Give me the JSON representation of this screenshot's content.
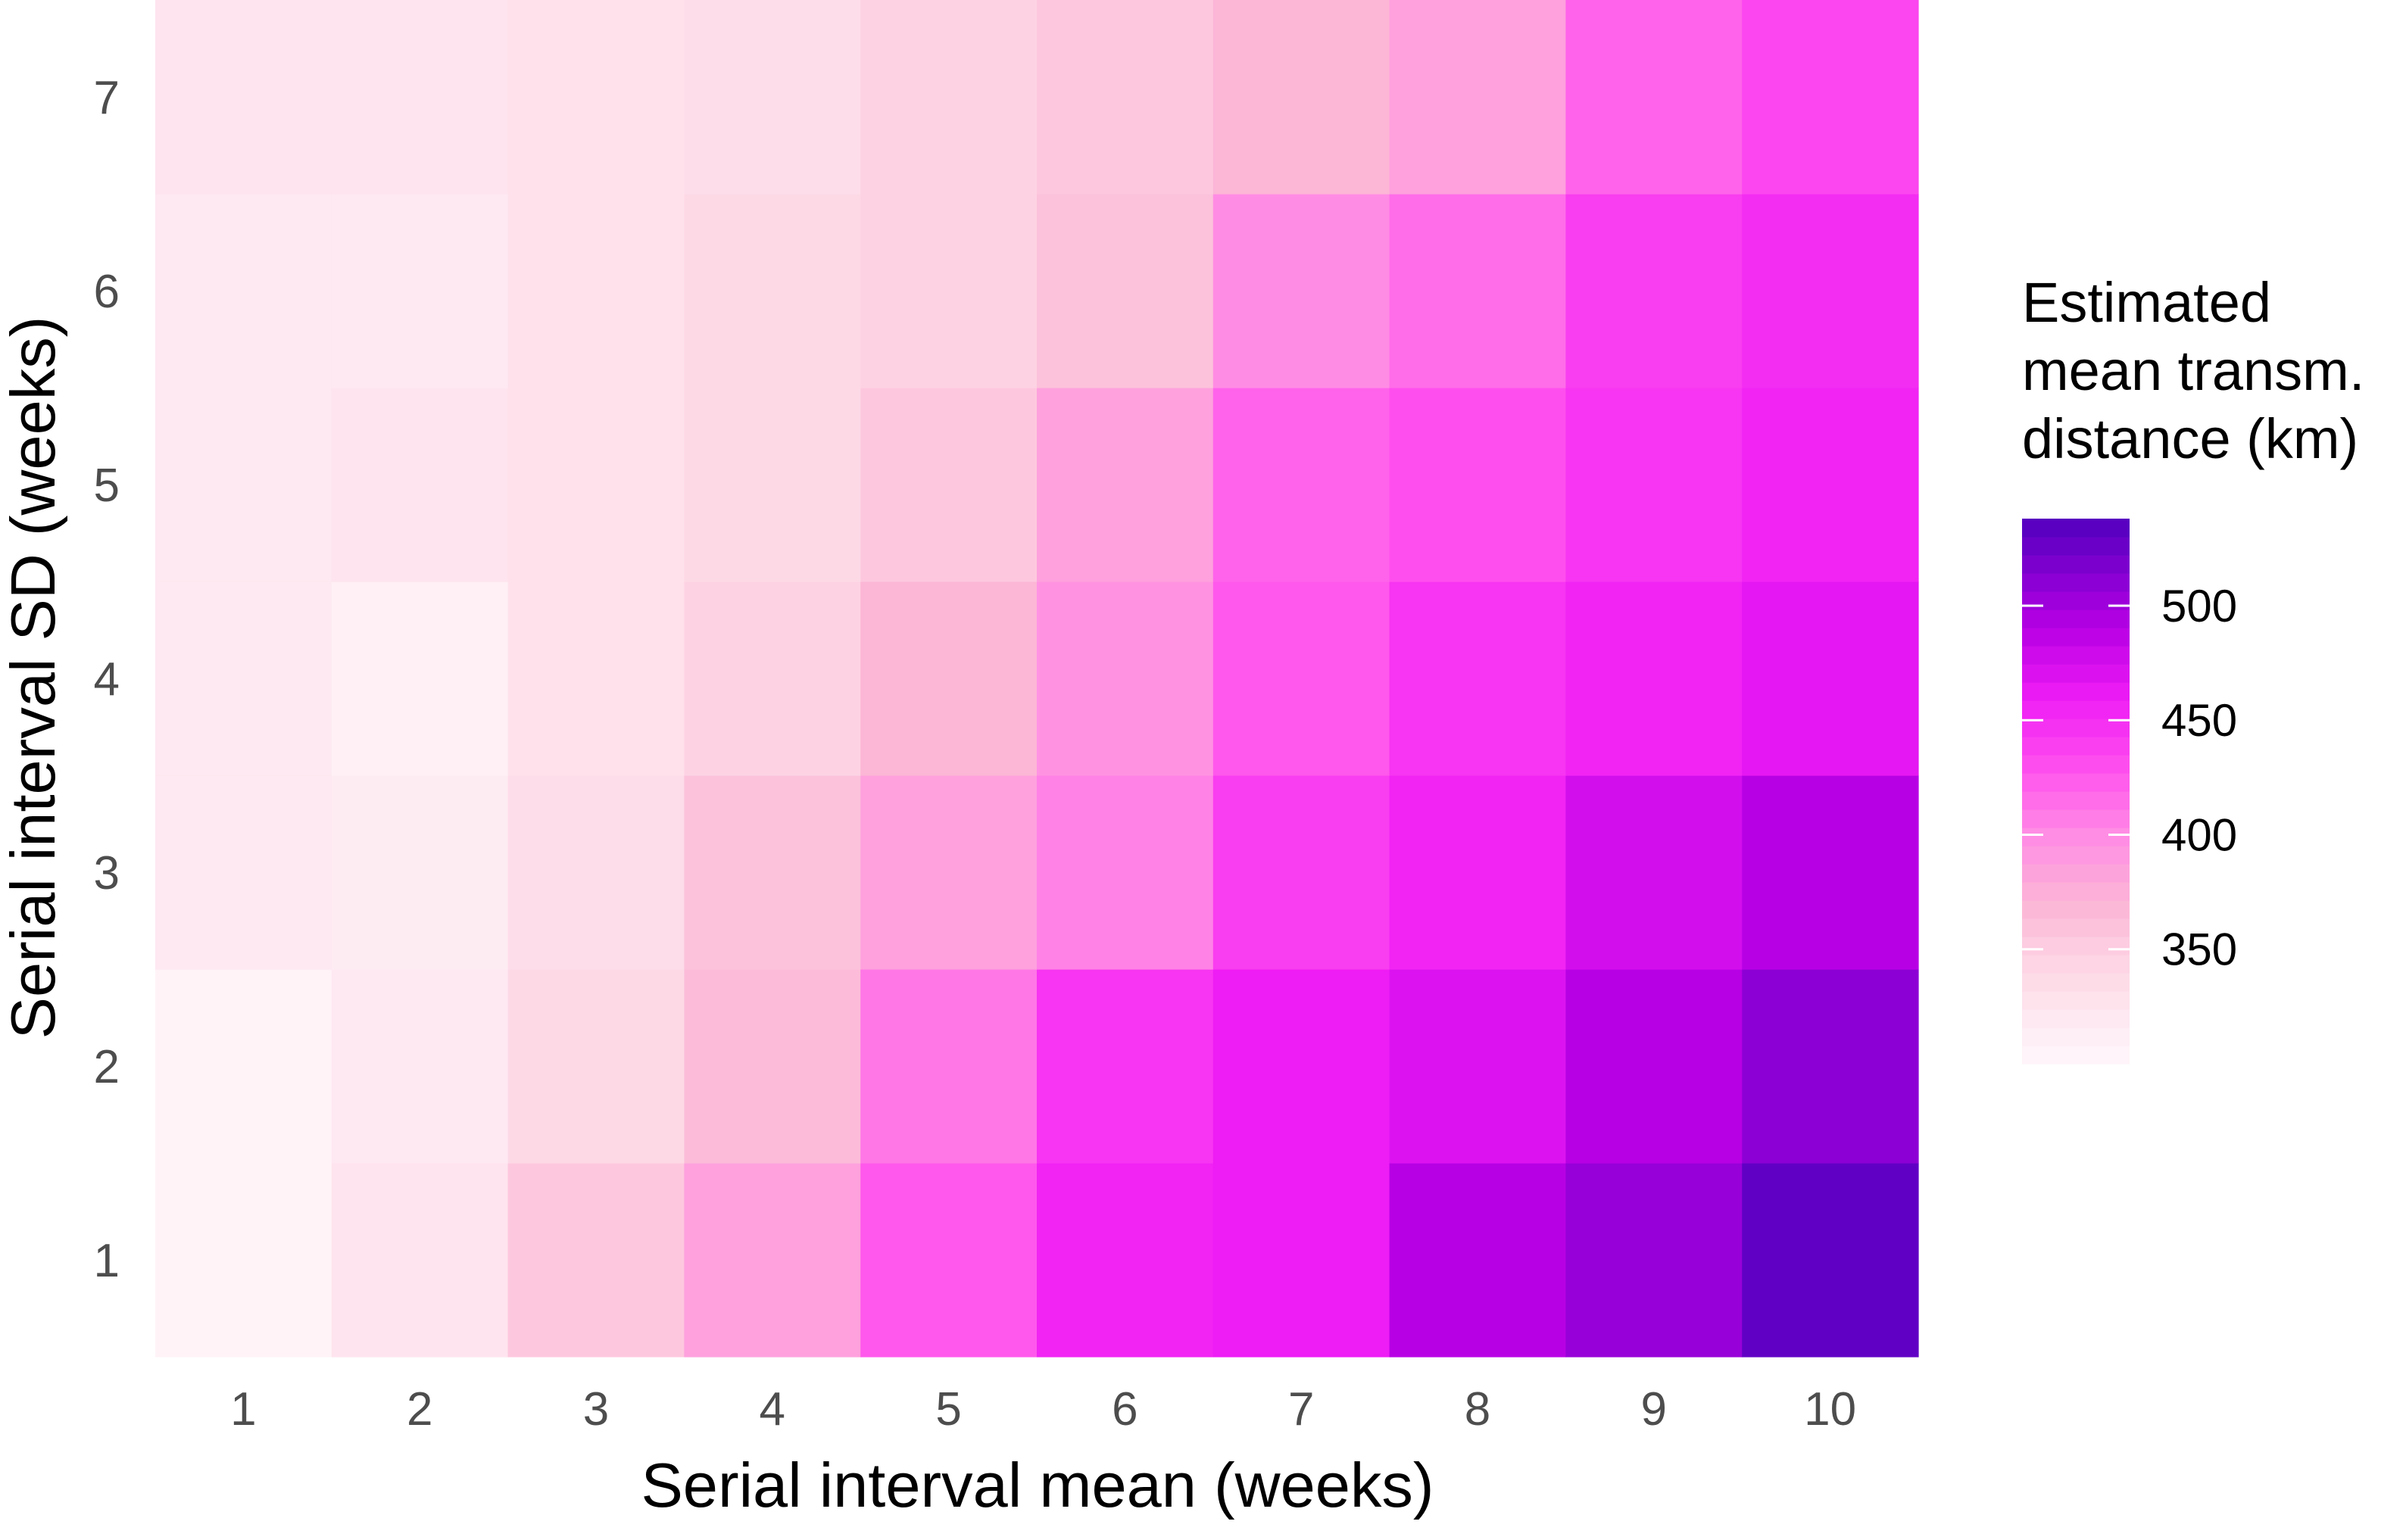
{
  "chart_data": {
    "type": "heatmap",
    "title": "",
    "xlabel": "Serial interval mean (weeks)",
    "ylabel": "Serial interval SD (weeks)",
    "x": [
      1,
      2,
      3,
      4,
      5,
      6,
      7,
      8,
      9,
      10
    ],
    "y": [
      1,
      2,
      3,
      4,
      5,
      6,
      7
    ],
    "x_tick_labels": [
      "1",
      "2",
      "3",
      "4",
      "5",
      "6",
      "7",
      "8",
      "9",
      "10"
    ],
    "y_tick_labels": [
      "1",
      "2",
      "3",
      "4",
      "5",
      "6",
      "7"
    ],
    "values": [
      [
        305,
        325,
        355,
        385,
        425,
        455,
        460,
        490,
        505,
        530
      ],
      [
        305,
        320,
        340,
        365,
        410,
        445,
        460,
        470,
        490,
        510
      ],
      [
        320,
        315,
        335,
        360,
        385,
        405,
        440,
        455,
        475,
        490
      ],
      [
        320,
        310,
        330,
        345,
        370,
        395,
        425,
        445,
        455,
        465
      ],
      [
        320,
        325,
        330,
        340,
        355,
        385,
        420,
        430,
        445,
        455
      ],
      [
        320,
        320,
        330,
        340,
        345,
        360,
        400,
        415,
        440,
        450
      ],
      [
        325,
        325,
        330,
        335,
        345,
        355,
        370,
        385,
        420,
        435
      ]
    ],
    "legend": {
      "title_lines": [
        "Estimated",
        "mean transm.",
        "distance (km)"
      ],
      "ticks": [
        350,
        400,
        450,
        500
      ],
      "tick_labels": [
        "350",
        "400",
        "450",
        "500"
      ],
      "min": 300,
      "max": 538,
      "placement": "right"
    },
    "colorscale": [
      {
        "v": 300,
        "c": "#fff7fb"
      },
      {
        "v": 340,
        "c": "#fdd9e6"
      },
      {
        "v": 370,
        "c": "#fcb6d6"
      },
      {
        "v": 400,
        "c": "#ff8ce4"
      },
      {
        "v": 430,
        "c": "#ff4eee"
      },
      {
        "v": 460,
        "c": "#ee1cf5"
      },
      {
        "v": 490,
        "c": "#b800e5"
      },
      {
        "v": 538,
        "c": "#5000be"
      }
    ],
    "grid": false
  }
}
